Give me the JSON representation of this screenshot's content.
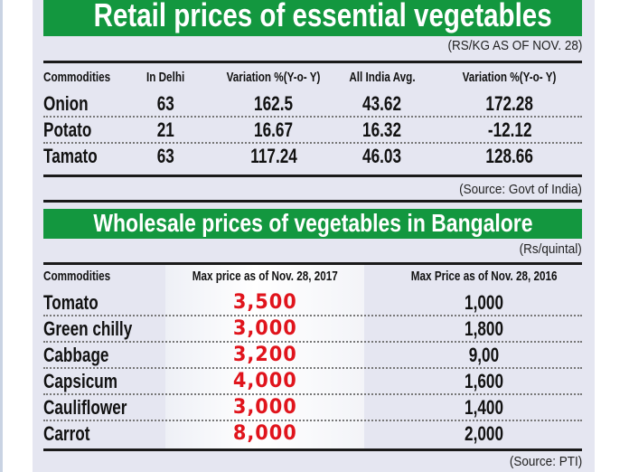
{
  "retail": {
    "title": "Retail prices of essential vegetables",
    "unit": "(RS/KG AS OF NOV. 28)",
    "headers": [
      "Commodities",
      "In Delhi",
      "Variation %(Y-o- Y)",
      "All India Avg.",
      "Variation %(Y-o- Y)"
    ],
    "rows": [
      [
        "Onion",
        "63",
        "162.5",
        "43.62",
        "172.28"
      ],
      [
        "Potato",
        "21",
        "16.67",
        "16.32",
        "-12.12"
      ],
      [
        "Tamato",
        "63",
        "117.24",
        "46.03",
        "128.66"
      ]
    ],
    "source": "(Source: Govt of India)"
  },
  "wholesale": {
    "title": "Wholesale prices of vegetables in Bangalore",
    "unit": "(Rs/quintal)",
    "headers": [
      "Commodities",
      "Max price as of Nov. 28, 2017",
      "Max Price as of Nov. 28, 2016"
    ],
    "rows": [
      [
        "Tomato",
        "3,500",
        "1,000"
      ],
      [
        "Green chilly",
        "3,000",
        "1,800"
      ],
      [
        "Cabbage",
        "3,200",
        "9,00"
      ],
      [
        "Capsicum",
        "4,000",
        "1,600"
      ],
      [
        "Cauliflower",
        "3,000",
        "1,400"
      ],
      [
        "Carrot",
        "8,000",
        "2,000"
      ]
    ],
    "source": "(Source: PTI)"
  },
  "colors": {
    "green": "#13973f",
    "red": "#e0141c",
    "panel": "#e5e6f1"
  }
}
